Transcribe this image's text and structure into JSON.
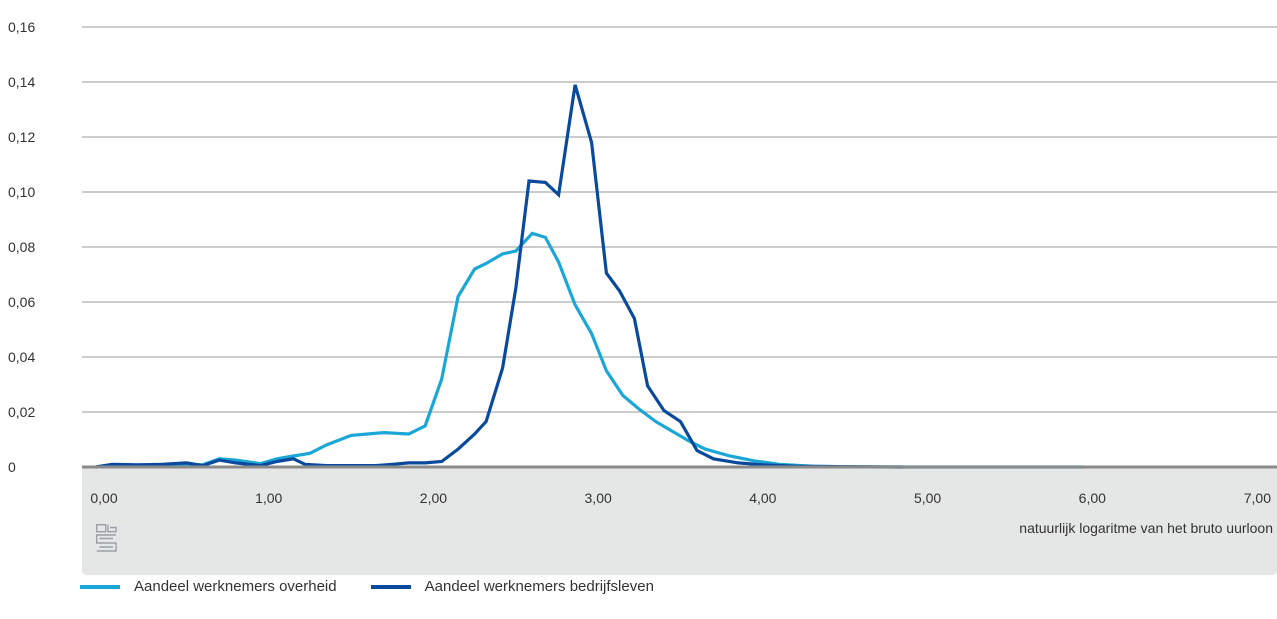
{
  "chart_data": {
    "type": "line",
    "title": "",
    "xlabel": "natuurlijk logaritme van het bruto uurloon",
    "ylabel": "",
    "xlim": [
      0,
      7
    ],
    "ylim": [
      0,
      0.16
    ],
    "x_ticks": [
      "0,00",
      "1,00",
      "2,00",
      "3,00",
      "4,00",
      "5,00",
      "6,00",
      "7,00"
    ],
    "y_ticks": [
      "0",
      "0,02",
      "0,04",
      "0,06",
      "0,08",
      "0,10",
      "0,12",
      "0,14",
      "0,16"
    ],
    "grid": "horizontal",
    "legend_position": "bottom-left",
    "logo": "cbs-logo",
    "series": [
      {
        "name": "Aandeel werknemers overheid",
        "color": "#1aa7d7",
        "points": [
          [
            -0.05,
            0.0
          ],
          [
            0.05,
            0.0008
          ],
          [
            0.2,
            0.0005
          ],
          [
            0.35,
            0.0008
          ],
          [
            0.5,
            0.001
          ],
          [
            0.6,
            0.0008
          ],
          [
            0.7,
            0.003
          ],
          [
            0.8,
            0.0025
          ],
          [
            0.95,
            0.0012
          ],
          [
            1.05,
            0.003
          ],
          [
            1.15,
            0.004
          ],
          [
            1.25,
            0.005
          ],
          [
            1.35,
            0.008
          ],
          [
            1.5,
            0.0115
          ],
          [
            1.6,
            0.012
          ],
          [
            1.7,
            0.0125
          ],
          [
            1.85,
            0.012
          ],
          [
            1.95,
            0.015
          ],
          [
            2.05,
            0.032
          ],
          [
            2.15,
            0.062
          ],
          [
            2.25,
            0.072
          ],
          [
            2.32,
            0.074
          ],
          [
            2.42,
            0.0775
          ],
          [
            2.5,
            0.0785
          ],
          [
            2.6,
            0.085
          ],
          [
            2.68,
            0.0835
          ],
          [
            2.76,
            0.0745
          ],
          [
            2.86,
            0.059
          ],
          [
            2.96,
            0.0485
          ],
          [
            3.05,
            0.035
          ],
          [
            3.15,
            0.026
          ],
          [
            3.25,
            0.021
          ],
          [
            3.35,
            0.0165
          ],
          [
            3.45,
            0.013
          ],
          [
            3.55,
            0.0095
          ],
          [
            3.65,
            0.0065
          ],
          [
            3.8,
            0.004
          ],
          [
            3.95,
            0.0022
          ],
          [
            4.1,
            0.001
          ],
          [
            4.3,
            0.0003
          ],
          [
            4.5,
            0.0001
          ],
          [
            4.8,
            0.0
          ],
          [
            5.5,
            0.0
          ],
          [
            5.95,
            0.0
          ]
        ]
      },
      {
        "name": "Aandeel werknemers bedrijfsleven",
        "color": "#0a4a9c",
        "points": [
          [
            -0.05,
            0.0
          ],
          [
            0.05,
            0.001
          ],
          [
            0.2,
            0.0008
          ],
          [
            0.35,
            0.001
          ],
          [
            0.5,
            0.0015
          ],
          [
            0.6,
            0.0005
          ],
          [
            0.7,
            0.0025
          ],
          [
            0.8,
            0.0015
          ],
          [
            0.95,
            0.0005
          ],
          [
            1.05,
            0.002
          ],
          [
            1.15,
            0.003
          ],
          [
            1.22,
            0.001
          ],
          [
            1.35,
            0.0005
          ],
          [
            1.5,
            0.0005
          ],
          [
            1.65,
            0.0005
          ],
          [
            1.75,
            0.001
          ],
          [
            1.85,
            0.0015
          ],
          [
            1.95,
            0.0015
          ],
          [
            2.05,
            0.002
          ],
          [
            2.15,
            0.0065
          ],
          [
            2.25,
            0.012
          ],
          [
            2.32,
            0.0165
          ],
          [
            2.42,
            0.036
          ],
          [
            2.5,
            0.065
          ],
          [
            2.58,
            0.104
          ],
          [
            2.68,
            0.1035
          ],
          [
            2.76,
            0.099
          ],
          [
            2.86,
            0.139
          ],
          [
            2.96,
            0.118
          ],
          [
            3.05,
            0.0705
          ],
          [
            3.13,
            0.064
          ],
          [
            3.22,
            0.054
          ],
          [
            3.3,
            0.0295
          ],
          [
            3.4,
            0.0205
          ],
          [
            3.5,
            0.0165
          ],
          [
            3.6,
            0.006
          ],
          [
            3.7,
            0.003
          ],
          [
            3.85,
            0.0015
          ],
          [
            4.0,
            0.0008
          ],
          [
            4.2,
            0.0003
          ],
          [
            4.5,
            0.0001
          ],
          [
            4.85,
            0.0
          ]
        ]
      }
    ]
  }
}
